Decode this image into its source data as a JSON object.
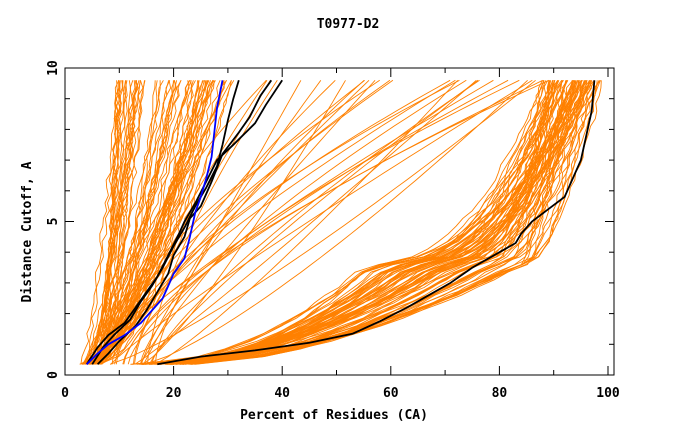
{
  "chart_data": {
    "type": "line",
    "title": "T0977-D2",
    "xlabel": "Percent of Residues (CA)",
    "ylabel": "Distance Cutoff, A",
    "xlim": [
      0,
      100
    ],
    "ylim": [
      0,
      10
    ],
    "x_ticks": [
      0,
      20,
      40,
      60,
      80,
      100
    ],
    "y_ticks": [
      0,
      5,
      10
    ],
    "grid": false,
    "legend": "none",
    "colors": {
      "bundle": "#ff8000",
      "highlight": "#000000",
      "reference": "#0000ff"
    },
    "series": [
      {
        "color": "#000000",
        "points": [
          [
            17,
            0.35
          ],
          [
            25,
            0.6
          ],
          [
            35,
            0.8
          ],
          [
            45,
            1.05
          ],
          [
            53,
            1.35
          ],
          [
            58,
            1.75
          ],
          [
            63,
            2.2
          ],
          [
            67,
            2.6
          ],
          [
            71,
            3.0
          ],
          [
            75,
            3.5
          ],
          [
            79,
            3.9
          ],
          [
            83,
            4.3
          ],
          [
            84,
            4.6
          ],
          [
            86,
            5.0
          ],
          [
            89,
            5.4
          ],
          [
            92,
            5.8
          ],
          [
            93,
            6.2
          ],
          [
            95,
            7.0
          ],
          [
            96,
            7.8
          ],
          [
            97,
            8.6
          ],
          [
            97.5,
            9.6
          ]
        ]
      },
      {
        "color": "#000000",
        "points": [
          [
            4,
            0.35
          ],
          [
            6,
            0.9
          ],
          [
            8,
            1.3
          ],
          [
            11,
            1.7
          ],
          [
            13,
            2.2
          ],
          [
            15,
            2.7
          ],
          [
            17,
            3.2
          ],
          [
            19,
            3.9
          ],
          [
            21,
            4.6
          ],
          [
            22,
            5.0
          ],
          [
            24,
            5.6
          ],
          [
            26,
            6.3
          ],
          [
            28,
            7.0
          ],
          [
            31,
            7.5
          ],
          [
            35,
            8.2
          ],
          [
            37,
            8.8
          ],
          [
            40,
            9.6
          ]
        ]
      },
      {
        "color": "#000000",
        "points": [
          [
            6,
            0.35
          ],
          [
            8,
            0.7
          ],
          [
            10,
            1.1
          ],
          [
            13,
            1.6
          ],
          [
            15,
            2.1
          ],
          [
            17,
            2.7
          ],
          [
            19,
            3.3
          ],
          [
            20,
            3.9
          ],
          [
            22,
            4.5
          ],
          [
            23,
            5.1
          ],
          [
            25,
            5.5
          ],
          [
            27,
            6.3
          ],
          [
            29,
            7.2
          ],
          [
            32,
            7.9
          ],
          [
            34,
            8.4
          ],
          [
            36,
            9.1
          ],
          [
            38,
            9.6
          ]
        ]
      },
      {
        "color": "#000000",
        "points": [
          [
            5,
            0.35
          ],
          [
            7,
            0.9
          ],
          [
            9,
            1.3
          ],
          [
            12,
            1.8
          ],
          [
            14,
            2.4
          ],
          [
            16,
            2.9
          ],
          [
            18,
            3.5
          ],
          [
            20,
            4.2
          ],
          [
            22,
            4.8
          ],
          [
            24,
            5.5
          ],
          [
            26,
            6.1
          ],
          [
            28,
            6.8
          ],
          [
            29,
            7.5
          ],
          [
            30,
            8.3
          ],
          [
            31,
            9.0
          ],
          [
            32,
            9.6
          ]
        ]
      },
      {
        "color": "#0000ff",
        "points": [
          [
            4,
            0.35
          ],
          [
            6,
            0.7
          ],
          [
            8,
            1.0
          ],
          [
            11,
            1.3
          ],
          [
            14,
            1.7
          ],
          [
            16,
            2.1
          ],
          [
            18,
            2.5
          ],
          [
            19,
            2.9
          ],
          [
            20,
            3.3
          ],
          [
            22,
            3.8
          ],
          [
            23,
            4.5
          ],
          [
            24,
            5.3
          ],
          [
            25,
            5.8
          ],
          [
            26,
            6.4
          ],
          [
            27,
            7.1
          ],
          [
            27.5,
            7.9
          ],
          [
            28,
            8.7
          ],
          [
            29,
            9.6
          ]
        ]
      }
    ]
  }
}
